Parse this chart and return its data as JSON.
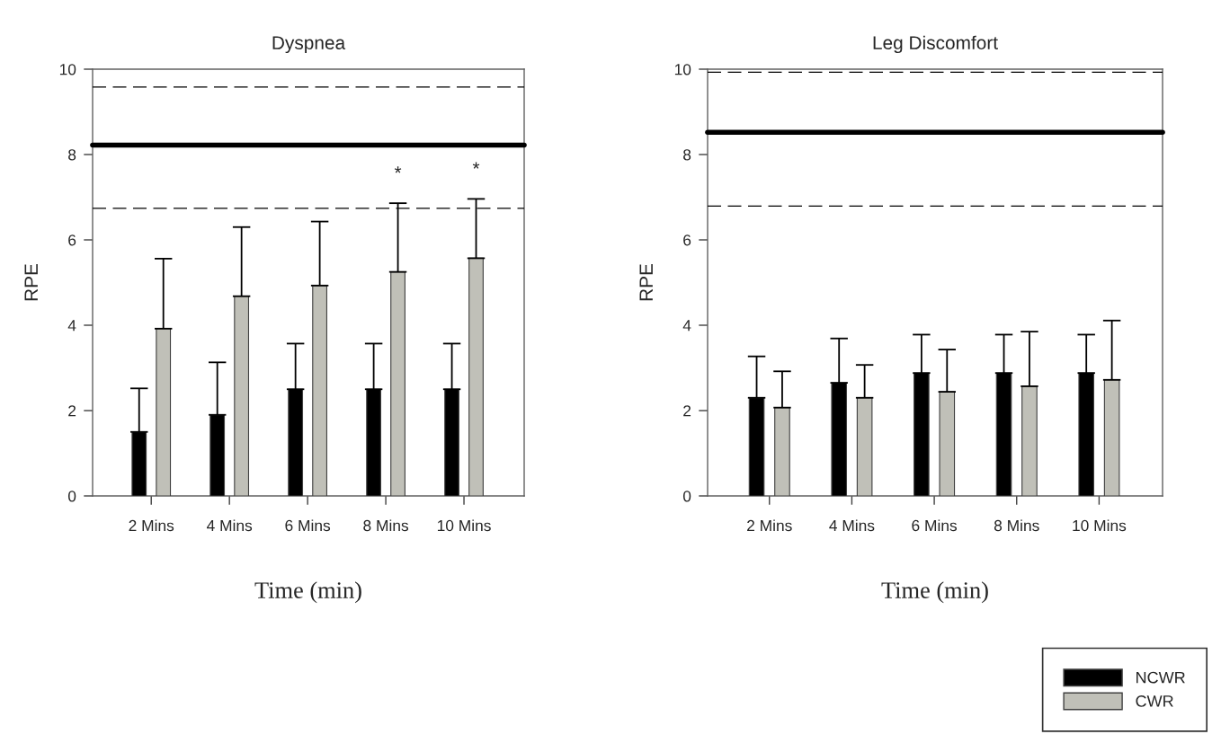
{
  "chart_data": [
    {
      "type": "bar",
      "title": "Dyspnea",
      "xlabel": "Time (min)",
      "ylabel": "RPE",
      "categories": [
        "2 Mins",
        "4 Mins",
        "6 Mins",
        "8 Mins",
        "10 Mins"
      ],
      "series": [
        {
          "color": "#000000",
          "values": [
            1.5,
            1.9,
            2.5,
            2.5,
            2.5
          ],
          "errors": [
            [
              1.5,
              2.52
            ],
            [
              1.9,
              3.13
            ],
            [
              2.5,
              3.57
            ],
            [
              2.5,
              3.57
            ],
            [
              2.5,
              3.57
            ]
          ]
        },
        {
          "color": "#c0c0b8",
          "values": [
            3.92,
            4.68,
            4.93,
            5.25,
            5.57
          ],
          "errors": [
            [
              3.92,
              5.56
            ],
            [
              4.68,
              6.3
            ],
            [
              4.93,
              6.43
            ],
            [
              5.25,
              6.86
            ],
            [
              5.57,
              6.96
            ]
          ]
        }
      ],
      "ylim": [
        0,
        10
      ],
      "yticks": [
        0,
        2,
        4,
        6,
        8,
        10
      ],
      "ref_lines": [
        {
          "axis": "y",
          "value": 8.22,
          "color": "#000000",
          "line_style": "solid"
        },
        {
          "axis": "y",
          "value": 9.58,
          "color": "#000000",
          "line_style": "dashed"
        },
        {
          "axis": "y",
          "value": 6.74,
          "color": "#000000",
          "line_style": "dashed"
        }
      ],
      "annotations": [
        "*",
        "*"
      ],
      "grid": false
    },
    {
      "type": "bar",
      "title": "Leg Discomfort",
      "xlabel": "Time (min)",
      "ylabel": "RPE",
      "categories": [
        "2 Mins",
        "4 Mins",
        "6 Mins",
        "8 Mins",
        "10 Mins"
      ],
      "series": [
        {
          "name": "NCWR",
          "color": "#000000",
          "values": [
            2.3,
            2.65,
            2.88,
            2.88,
            2.88
          ],
          "errors": [
            [
              2.3,
              3.27
            ],
            [
              2.65,
              3.69
            ],
            [
              2.88,
              3.78
            ],
            [
              2.88,
              3.78
            ],
            [
              2.88,
              3.78
            ]
          ]
        },
        {
          "name": "CWR",
          "color": "#c0c0b8",
          "values": [
            2.07,
            2.3,
            2.44,
            2.57,
            2.72
          ],
          "errors": [
            [
              2.07,
              2.92
            ],
            [
              2.3,
              3.07
            ],
            [
              2.44,
              3.43
            ],
            [
              2.57,
              3.85
            ],
            [
              2.72,
              4.11
            ]
          ]
        }
      ],
      "ylim": [
        0,
        10
      ],
      "yticks": [
        0,
        2,
        4,
        6,
        8,
        10
      ],
      "ref_lines": [
        {
          "axis": "y",
          "value": 8.52,
          "color": "#000000",
          "line_style": "solid"
        },
        {
          "axis": "y",
          "value": 9.93,
          "color": "#000000",
          "line_style": "dashed"
        },
        {
          "axis": "y",
          "value": 6.79,
          "color": "#000000",
          "line_style": "dashed"
        }
      ],
      "grid": false,
      "legend": "bottom right"
    }
  ]
}
